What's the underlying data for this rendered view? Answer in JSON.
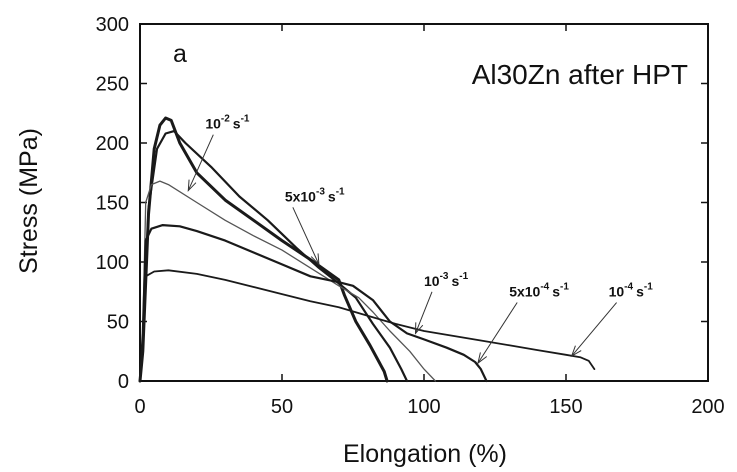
{
  "chart_data": {
    "type": "line",
    "panel_label": "a",
    "title": "Al30Zn after HPT",
    "xlabel": "Elongation (%)",
    "ylabel": "Stress (MPa)",
    "xlim": [
      0,
      200
    ],
    "ylim": [
      0,
      300
    ],
    "xticks": [
      0,
      50,
      100,
      150,
      200
    ],
    "yticks": [
      0,
      50,
      100,
      150,
      200,
      250,
      300
    ],
    "grid": false,
    "legend": "none",
    "series": [
      {
        "label_base": "10",
        "label_exp": "-2",
        "label_unit": "s",
        "label_unit_exp": "-1",
        "color": "#1a1a1a",
        "width": 3,
        "points": [
          [
            0,
            0
          ],
          [
            1,
            25
          ],
          [
            3,
            140
          ],
          [
            5,
            195
          ],
          [
            7,
            215
          ],
          [
            9,
            221
          ],
          [
            11,
            219
          ],
          [
            14,
            200
          ],
          [
            20,
            175
          ],
          [
            30,
            152
          ],
          [
            40,
            135
          ],
          [
            50,
            118
          ],
          [
            60,
            102
          ],
          [
            70,
            85
          ],
          [
            72,
            72
          ],
          [
            76,
            50
          ],
          [
            81,
            30
          ],
          [
            86,
            8
          ],
          [
            87,
            0
          ]
        ],
        "label_at": [
          23,
          212
        ],
        "arrow_tip": [
          17,
          160
        ]
      },
      {
        "label_base": "5x10",
        "label_exp": "-3",
        "label_unit": "s",
        "label_unit_exp": "-1",
        "color": "#1a1a1a",
        "width": 2.2,
        "points": [
          [
            0,
            0
          ],
          [
            1,
            25
          ],
          [
            3,
            145
          ],
          [
            6,
            195
          ],
          [
            9,
            208
          ],
          [
            12,
            210
          ],
          [
            16,
            200
          ],
          [
            25,
            180
          ],
          [
            35,
            155
          ],
          [
            45,
            135
          ],
          [
            55,
            112
          ],
          [
            63,
            95
          ],
          [
            70,
            82
          ],
          [
            76,
            70
          ],
          [
            82,
            48
          ],
          [
            88,
            28
          ],
          [
            92,
            10
          ],
          [
            94,
            0
          ]
        ],
        "label_at": [
          51,
          151
        ],
        "arrow_tip": [
          63,
          98
        ]
      },
      {
        "label_base": "10",
        "label_exp": "-3",
        "label_unit": "s",
        "label_unit_exp": "-1",
        "color": "#555555",
        "width": 1.3,
        "points": [
          [
            0,
            0
          ],
          [
            1,
            40
          ],
          [
            2,
            150
          ],
          [
            4,
            165
          ],
          [
            7,
            168
          ],
          [
            10,
            165
          ],
          [
            20,
            150
          ],
          [
            30,
            135
          ],
          [
            40,
            122
          ],
          [
            50,
            110
          ],
          [
            60,
            95
          ],
          [
            70,
            80
          ],
          [
            77,
            70
          ],
          [
            82,
            58
          ],
          [
            88,
            42
          ],
          [
            95,
            25
          ],
          [
            100,
            10
          ],
          [
            104,
            0
          ]
        ],
        "label_at": [
          100,
          80
        ],
        "arrow_tip": [
          97,
          40
        ]
      },
      {
        "label_base": "5x10",
        "label_exp": "-4",
        "label_unit": "s",
        "label_unit_exp": "-1",
        "color": "#1a1a1a",
        "width": 2.2,
        "points": [
          [
            0,
            0
          ],
          [
            1,
            40
          ],
          [
            2,
            118
          ],
          [
            4,
            128
          ],
          [
            8,
            131
          ],
          [
            14,
            130
          ],
          [
            20,
            126
          ],
          [
            30,
            118
          ],
          [
            40,
            108
          ],
          [
            50,
            98
          ],
          [
            60,
            88
          ],
          [
            70,
            83
          ],
          [
            75,
            80
          ],
          [
            82,
            68
          ],
          [
            88,
            50
          ],
          [
            94,
            40
          ],
          [
            100,
            35
          ],
          [
            108,
            28
          ],
          [
            114,
            22
          ],
          [
            118,
            16
          ],
          [
            120,
            10
          ],
          [
            122,
            0
          ]
        ],
        "label_at": [
          130,
          71
        ],
        "arrow_tip": [
          119,
          15
        ]
      },
      {
        "label_base": "10",
        "label_exp": "-4",
        "label_unit": "s",
        "label_unit_exp": "-1",
        "color": "#1a1a1a",
        "width": 1.8,
        "points": [
          [
            0,
            0
          ],
          [
            1,
            35
          ],
          [
            2,
            88
          ],
          [
            5,
            92
          ],
          [
            10,
            93
          ],
          [
            20,
            90
          ],
          [
            30,
            85
          ],
          [
            40,
            79
          ],
          [
            50,
            73
          ],
          [
            60,
            67
          ],
          [
            70,
            62
          ],
          [
            80,
            55
          ],
          [
            90,
            48
          ],
          [
            100,
            42
          ],
          [
            110,
            38
          ],
          [
            120,
            34
          ],
          [
            130,
            30
          ],
          [
            140,
            26
          ],
          [
            150,
            22
          ],
          [
            155,
            20
          ],
          [
            158,
            17
          ],
          [
            160,
            10
          ]
        ],
        "label_at": [
          165,
          71
        ],
        "arrow_tip": [
          152,
          21
        ]
      }
    ]
  }
}
